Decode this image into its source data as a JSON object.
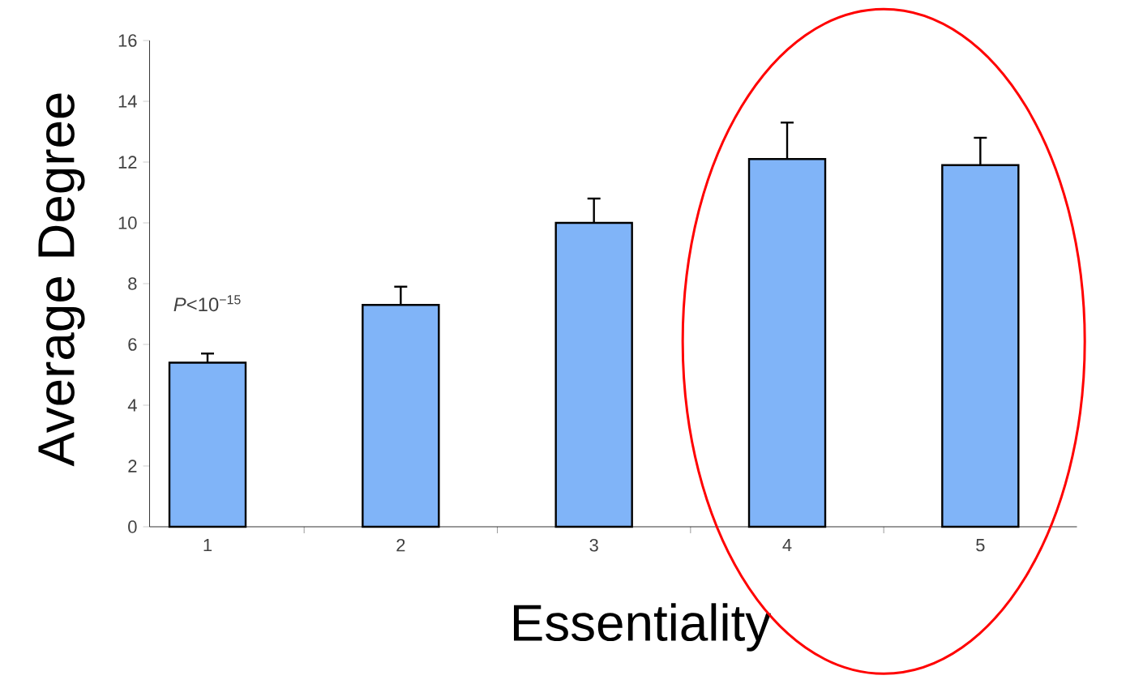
{
  "chart_data": {
    "type": "bar",
    "xlabel": "Essentiality",
    "ylabel": "Average Degree",
    "categories": [
      "1",
      "2",
      "3",
      "4",
      "5"
    ],
    "values": [
      5.4,
      7.3,
      10.0,
      12.1,
      11.9
    ],
    "errors": [
      0.3,
      0.6,
      0.8,
      1.2,
      0.9
    ],
    "color": "#80b4f8",
    "ylim": [
      0,
      16
    ],
    "yticks": [
      0,
      2,
      4,
      6,
      8,
      10,
      12,
      14,
      16
    ],
    "annotations": [
      "*P*<10$^{−15}$"
    ]
  }
}
